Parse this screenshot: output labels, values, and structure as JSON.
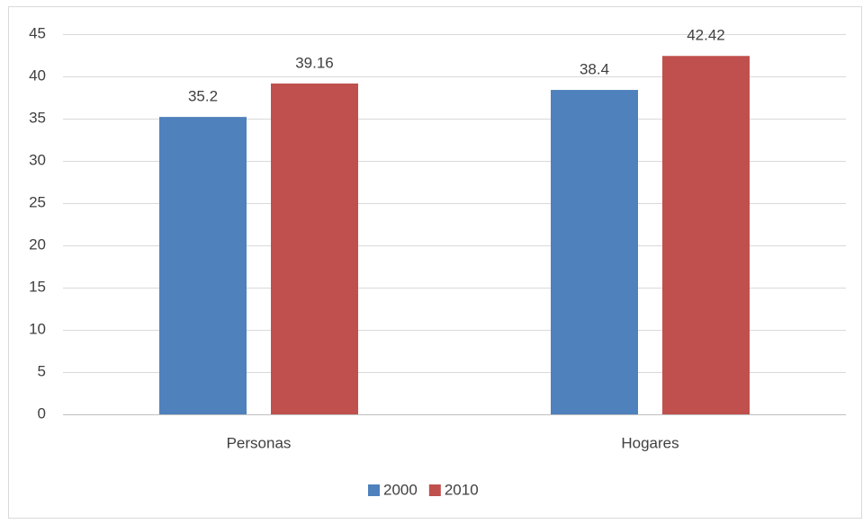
{
  "chart_data": {
    "type": "bar",
    "categories": [
      "Personas",
      "Hogares"
    ],
    "series": [
      {
        "name": "2000",
        "color": "#4f81bd",
        "values": [
          35.2,
          38.4
        ]
      },
      {
        "name": "2010",
        "color": "#c0504d",
        "values": [
          39.16,
          42.42
        ]
      }
    ],
    "ylim": [
      0,
      45
    ],
    "yticks": [
      0,
      5,
      10,
      15,
      20,
      25,
      30,
      35,
      40,
      45
    ],
    "grid": true,
    "legend": "bottom"
  }
}
